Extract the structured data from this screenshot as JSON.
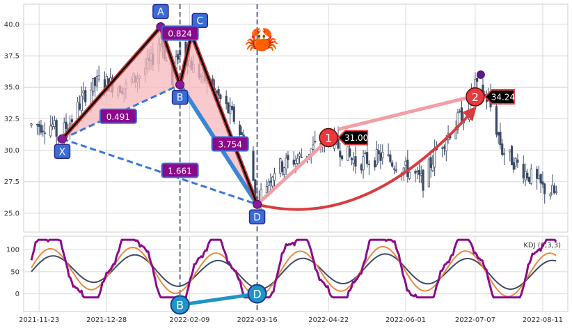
{
  "chart_data": [
    {
      "type": "candlestick",
      "title": "",
      "xlabel": "",
      "ylabel": "",
      "ylim": [
        23.5,
        41.6
      ],
      "yticks": [
        "25.0",
        "27.5",
        "30.0",
        "32.5",
        "35.0",
        "37.5",
        "40.0"
      ],
      "xticks": [
        "2021-11-23",
        "2021-12-28",
        "2022-02-09",
        "2022-03-16",
        "2022-04-22",
        "2022-06-01",
        "2022-07-07",
        "2022-08-11"
      ],
      "x_range": [
        "2021-11-15",
        "2022-08-24"
      ],
      "grid": true,
      "close_approx": [
        [
          "2021-11-19",
          32.0
        ],
        [
          "2021-11-30",
          32.0
        ],
        [
          "2021-12-03",
          31.0
        ],
        [
          "2021-12-10",
          32.5
        ],
        [
          "2021-12-17",
          34.5
        ],
        [
          "2021-12-24",
          35.5
        ],
        [
          "2022-01-07",
          35.0
        ],
        [
          "2022-01-14",
          36.0
        ],
        [
          "2022-01-20",
          37.0
        ],
        [
          "2022-01-25",
          39.0
        ],
        [
          "2022-01-31",
          35.2
        ],
        [
          "2022-02-04",
          38.5
        ],
        [
          "2022-02-11",
          36.5
        ],
        [
          "2022-02-18",
          35.5
        ],
        [
          "2022-02-25",
          34.0
        ],
        [
          "2022-03-04",
          32.5
        ],
        [
          "2022-03-11",
          30.0
        ],
        [
          "2022-03-16",
          26.0
        ],
        [
          "2022-03-25",
          28.5
        ],
        [
          "2022-04-01",
          29.0
        ],
        [
          "2022-04-08",
          29.5
        ],
        [
          "2022-04-22",
          31.0
        ],
        [
          "2022-05-06",
          29.0
        ],
        [
          "2022-05-20",
          29.5
        ],
        [
          "2022-06-01",
          28.5
        ],
        [
          "2022-06-10",
          27.5
        ],
        [
          "2022-06-17",
          30.0
        ],
        [
          "2022-06-24",
          31.5
        ],
        [
          "2022-07-01",
          33.0
        ],
        [
          "2022-07-07",
          35.0
        ],
        [
          "2022-07-14",
          34.0
        ],
        [
          "2022-07-21",
          30.0
        ],
        [
          "2022-07-28",
          29.0
        ],
        [
          "2022-08-04",
          28.0
        ],
        [
          "2022-08-11",
          27.0
        ],
        [
          "2022-08-18",
          26.5
        ]
      ],
      "pattern": {
        "points": [
          {
            "label": "X",
            "date": "2021-12-05",
            "price": 30.9
          },
          {
            "label": "A",
            "date": "2022-01-25",
            "price": 39.8
          },
          {
            "label": "B",
            "date": "2022-02-04",
            "price": 35.2
          },
          {
            "label": "C",
            "date": "2022-02-10",
            "price": 39.2
          },
          {
            "label": "D",
            "date": "2022-03-16",
            "price": 25.7
          }
        ],
        "ratios": [
          {
            "text": "0.824",
            "date": "2022-02-04",
            "price": 39.3
          },
          {
            "text": "0.491",
            "date": "2022-01-03",
            "price": 32.7
          },
          {
            "text": "3.754",
            "date": "2022-03-02",
            "price": 30.5
          },
          {
            "text": "1.661",
            "date": "2022-02-04",
            "price": 28.4
          }
        ],
        "marked_dates": [
          "2022-02-04",
          "2022-03-16"
        ]
      },
      "targets": [
        {
          "label": "1",
          "value": "31.00",
          "date": "2022-04-22",
          "price": 31.0
        },
        {
          "label": "2",
          "value": "34.24",
          "date": "2022-07-07",
          "price": 34.24
        }
      ],
      "peak_marker": {
        "date": "2022-07-07",
        "price": 36.0
      },
      "emoji": "🦀"
    },
    {
      "type": "line",
      "title": "",
      "legend_text": "KDJ (9,3,3)",
      "ylim": [
        -40,
        130
      ],
      "yticks": [
        "0",
        "50",
        "100"
      ],
      "series": [
        {
          "name": "",
          "key": "J",
          "color": "#8b0a8b",
          "width": 3
        },
        {
          "name": "",
          "key": "K",
          "color": "#e8883a",
          "width": 2
        },
        {
          "name": "",
          "key": "D",
          "color": "#3b4a66",
          "width": 2
        }
      ],
      "pivots": [
        {
          "label": "B",
          "date": "2022-02-04",
          "value": -25
        },
        {
          "label": "D",
          "date": "2022-03-16",
          "value": 0
        }
      ]
    }
  ],
  "colors": {
    "candle": "#3b4a66",
    "pattern_fill": "#f7b8bc",
    "pattern_edge": "#000000",
    "pattern_edge_red": "#c73a3a",
    "xd_blue": "#3a75d9",
    "bd_blue": "#3a86d6",
    "label_box": "#3a6cd9",
    "ratio_box": "#8b0a8b",
    "target_circle": "#e8393c",
    "target_arrow": "#f0a0a6",
    "curve_red": "#d83d3d",
    "pivot_cyan": "#1e94c9",
    "grid": "#d9d9d9"
  }
}
